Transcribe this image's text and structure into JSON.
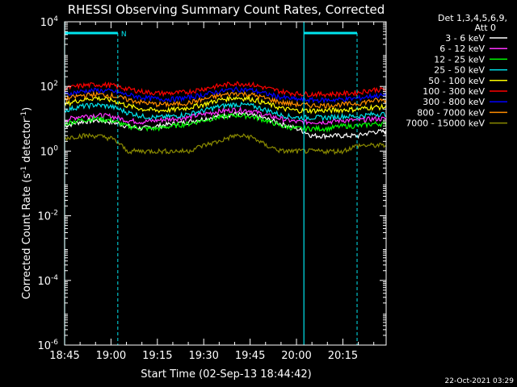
{
  "chart_data": {
    "type": "line",
    "title": "RHESSI Observing Summary Count Rates, Corrected",
    "xlabel": "Start Time (02-Sep-13 18:44:42)",
    "ylabel_main": "Corrected Count Rate (s",
    "ylabel_sup1": "-1",
    "ylabel_mid": " detector",
    "ylabel_sup2": "-1",
    "ylabel_end": ")",
    "yscale": "log",
    "ylim": [
      1e-06,
      10000.0
    ],
    "xlim_min": [
      0,
      104
    ],
    "x_ticks": [
      {
        "label": "18:45",
        "t": 0
      },
      {
        "label": "19:00",
        "t": 15
      },
      {
        "label": "19:15",
        "t": 30
      },
      {
        "label": "19:30",
        "t": 45
      },
      {
        "label": "19:45",
        "t": 60
      },
      {
        "label": "20:00",
        "t": 75
      },
      {
        "label": "20:15",
        "t": 90
      }
    ],
    "y_ticks": [
      {
        "base": "10",
        "exp": "4",
        "v": 4
      },
      {
        "base": "10",
        "exp": "2",
        "v": 2
      },
      {
        "base": "10",
        "exp": "0",
        "v": 0
      },
      {
        "base": "10",
        "exp": "-2",
        "v": -2
      },
      {
        "base": "10",
        "exp": "-4",
        "v": -4
      },
      {
        "base": "10",
        "exp": "-6",
        "v": -6
      }
    ],
    "legend": {
      "placement": "right",
      "header1": "Det 1,3,4,5,6,9,",
      "header2": "Att 0"
    },
    "night_flag_label": "N",
    "night_flag_color": "#00e5ee",
    "night_intervals_min": [
      [
        0,
        17.2
      ],
      [
        77.4,
        94.6
      ]
    ],
    "x": [
      0,
      5,
      10,
      15,
      20,
      25,
      30,
      35,
      40,
      45,
      50,
      55,
      60,
      65,
      70,
      75,
      80,
      85,
      90,
      95,
      100
    ],
    "series": [
      {
        "name": "3 - 6 keV",
        "color": "#ffffff",
        "values": [
          6,
          8,
          9,
          8,
          6,
          5,
          6,
          7,
          8,
          10,
          12,
          14,
          13,
          10,
          7,
          5,
          3,
          3,
          3,
          3,
          4
        ]
      },
      {
        "name": "6 - 12 keV",
        "color": "#ff33ff",
        "values": [
          9,
          12,
          13,
          12,
          9,
          8,
          9,
          10,
          11,
          14,
          17,
          19,
          18,
          13,
          10,
          8,
          8,
          8,
          9,
          9,
          10
        ]
      },
      {
        "name": "12 - 25 keV",
        "color": "#00ff00",
        "values": [
          7,
          9,
          10,
          9,
          6,
          5,
          5,
          6,
          7,
          9,
          11,
          13,
          12,
          9,
          6,
          5,
          5,
          5,
          6,
          6,
          7
        ]
      },
      {
        "name": "25 - 50 keV",
        "color": "#00e5ee",
        "values": [
          18,
          24,
          27,
          24,
          16,
          12,
          11,
          12,
          14,
          18,
          24,
          28,
          26,
          19,
          13,
          11,
          11,
          11,
          12,
          12,
          14
        ]
      },
      {
        "name": "50 - 100 keV",
        "color": "#ffff00",
        "values": [
          28,
          38,
          44,
          38,
          26,
          20,
          18,
          19,
          22,
          28,
          38,
          45,
          42,
          30,
          21,
          18,
          18,
          18,
          19,
          20,
          23
        ]
      },
      {
        "name": "100 - 300 keV",
        "color": "#ff0000",
        "values": [
          85,
          105,
          115,
          110,
          85,
          70,
          62,
          62,
          68,
          85,
          105,
          125,
          118,
          90,
          70,
          60,
          58,
          58,
          60,
          65,
          80
        ]
      },
      {
        "name": "300 - 800 keV",
        "color": "#0000ff",
        "values": [
          55,
          70,
          76,
          72,
          56,
          46,
          41,
          41,
          45,
          56,
          70,
          82,
          78,
          60,
          46,
          40,
          38,
          38,
          40,
          43,
          52
        ]
      },
      {
        "name": "800 - 7000 keV",
        "color": "#ff8c00",
        "values": [
          40,
          52,
          57,
          53,
          40,
          32,
          28,
          28,
          31,
          40,
          52,
          61,
          57,
          43,
          32,
          28,
          26,
          26,
          28,
          30,
          37
        ]
      },
      {
        "name": "7000 - 15000 keV",
        "color": "#8b8b00",
        "values": [
          2.5,
          3,
          3,
          2.5,
          1,
          1,
          1,
          1,
          1,
          1.5,
          2,
          3,
          2.8,
          1.5,
          1,
          1,
          1,
          1,
          1,
          1.5,
          1.5
        ]
      }
    ]
  },
  "footer": {
    "timestamp": "22-Oct-2021 03:29"
  }
}
